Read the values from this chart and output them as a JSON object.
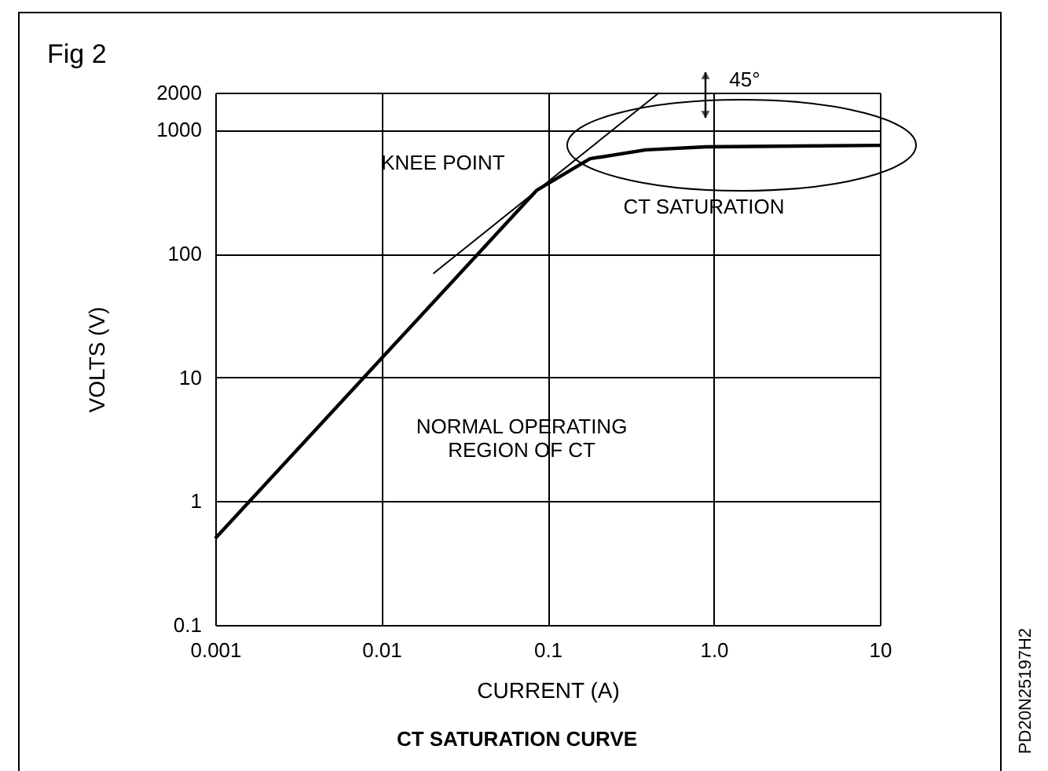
{
  "chart_data": {
    "type": "line",
    "title": "Fig 2",
    "subtitle": "CT SATURATION CURVE",
    "xlabel": "CURRENT (A)",
    "ylabel": "VOLTS (V)",
    "log": "xy",
    "grid": true,
    "marker": "none",
    "line_style": "solid",
    "xlim": [
      0.001,
      10
    ],
    "xticks": [
      0.001,
      0.01,
      0.1,
      {
        "value": 1,
        "label": "1.0"
      },
      10
    ],
    "ylim": [
      0.1,
      2000
    ],
    "yticks": [
      0.1,
      1,
      10,
      100,
      1000,
      2000
    ],
    "series": [
      {
        "color": "#000000",
        "x": [
          0.001,
          0.086,
          0.18,
          0.39,
          0.9,
          10
        ],
        "values": [
          0.5,
          325,
          585,
          690,
          730,
          750
        ]
      },
      {
        "color": "#000000",
        "x": [
          0.0205,
          0.47
        ],
        "values": [
          69,
          2000
        ]
      }
    ],
    "annotations": [
      "KNEE POINT",
      "CT SATURATION",
      "NORMAL OPERATING\nREGION OF CT",
      "45°",
      "PD20N25197H2"
    ]
  }
}
